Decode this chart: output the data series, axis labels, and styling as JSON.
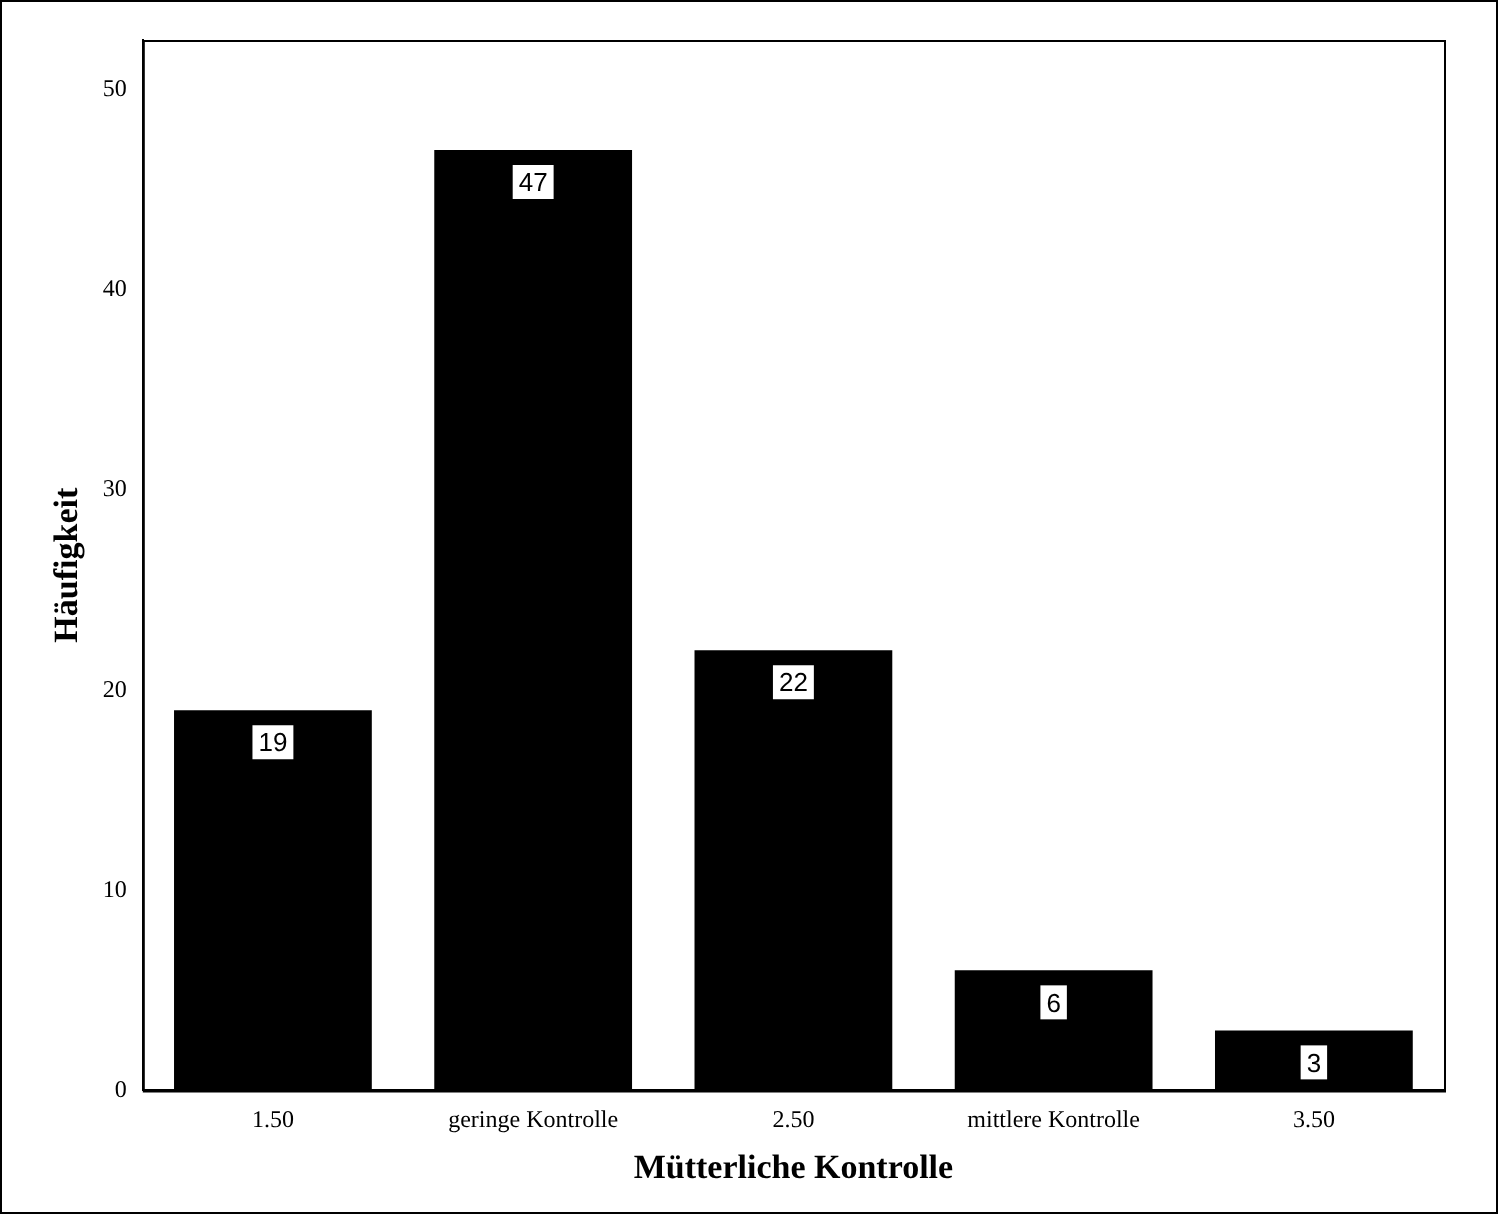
{
  "chart_data": {
    "type": "bar",
    "xlabel": "Mütterliche Kontrolle",
    "ylabel": "Häufigkeit",
    "categories": [
      "1.50",
      "geringe Kontrolle",
      "2.50",
      "mittlere Kontrolle",
      "3.50"
    ],
    "values": [
      19,
      47,
      22,
      6,
      3
    ],
    "color": "#000000",
    "ylim": [
      0,
      52.5
    ],
    "yticks": [
      0,
      10,
      20,
      30,
      40,
      50
    ],
    "grid": false,
    "legend": false,
    "data_labels": true
  }
}
